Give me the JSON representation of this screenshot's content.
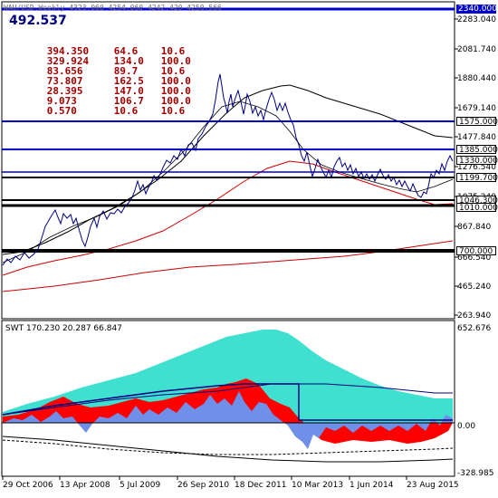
{
  "header": {
    "ohlc_text": "WAU/USD,Weekly  4323.060 4254.060 4242.420 4250.566",
    "big_value": "492.537",
    "stats": [
      [
        "394.350",
        "64.6",
        "10.6"
      ],
      [
        "329.924",
        "134.0",
        "100.0"
      ],
      [
        "83.656",
        "89.7",
        "10.6"
      ],
      [
        "73.807",
        "162.5",
        "100.0"
      ],
      [
        "28.395",
        "147.0",
        "100.0"
      ],
      [
        "9.073",
        "106.7",
        "100.0"
      ],
      [
        "0.570",
        "10.6",
        "10.6"
      ]
    ]
  },
  "price_axis": [
    "2283.040",
    "2081.740",
    "1880.440",
    "1679.140",
    "1477.840",
    "1276.540",
    "1075.240",
    "867.840",
    "666.540",
    "465.240",
    "263.940"
  ],
  "price_tags": [
    {
      "text": "2340.000",
      "style": "blue"
    },
    {
      "text": "1575.000",
      "style": "white"
    },
    {
      "text": "1385.000",
      "style": "white"
    },
    {
      "text": "1330.000",
      "style": "white"
    },
    {
      "text": "1199.700",
      "style": "white"
    },
    {
      "text": "1046.300",
      "style": "white"
    },
    {
      "text": "1010.000",
      "style": "white"
    },
    {
      "text": "700.000",
      "style": "white"
    }
  ],
  "subwindow": {
    "title": "SWT 170.230 20.287 66.847",
    "axis": [
      "652.676",
      "0.00",
      "-328.985"
    ]
  },
  "date_axis": [
    "29 Oct 2006",
    "13 Apr 2008",
    "5 Jul 2009",
    "26 Sep 2010",
    "18 Dec 2011",
    "10 Mar 2013",
    "1 Jun 2014",
    "23 Aug 2015"
  ],
  "colors": {
    "price_line": "#000080",
    "ma_black": "#000000",
    "ma_red": "#cc0000",
    "level_blue": "#0000cc",
    "level_black": "#000000",
    "turquoise": "#40e0d0",
    "red_fill": "#ff0000",
    "blue_fill": "#6f8fe8",
    "stats_text": "#a00000",
    "title_text": "#000080"
  }
}
